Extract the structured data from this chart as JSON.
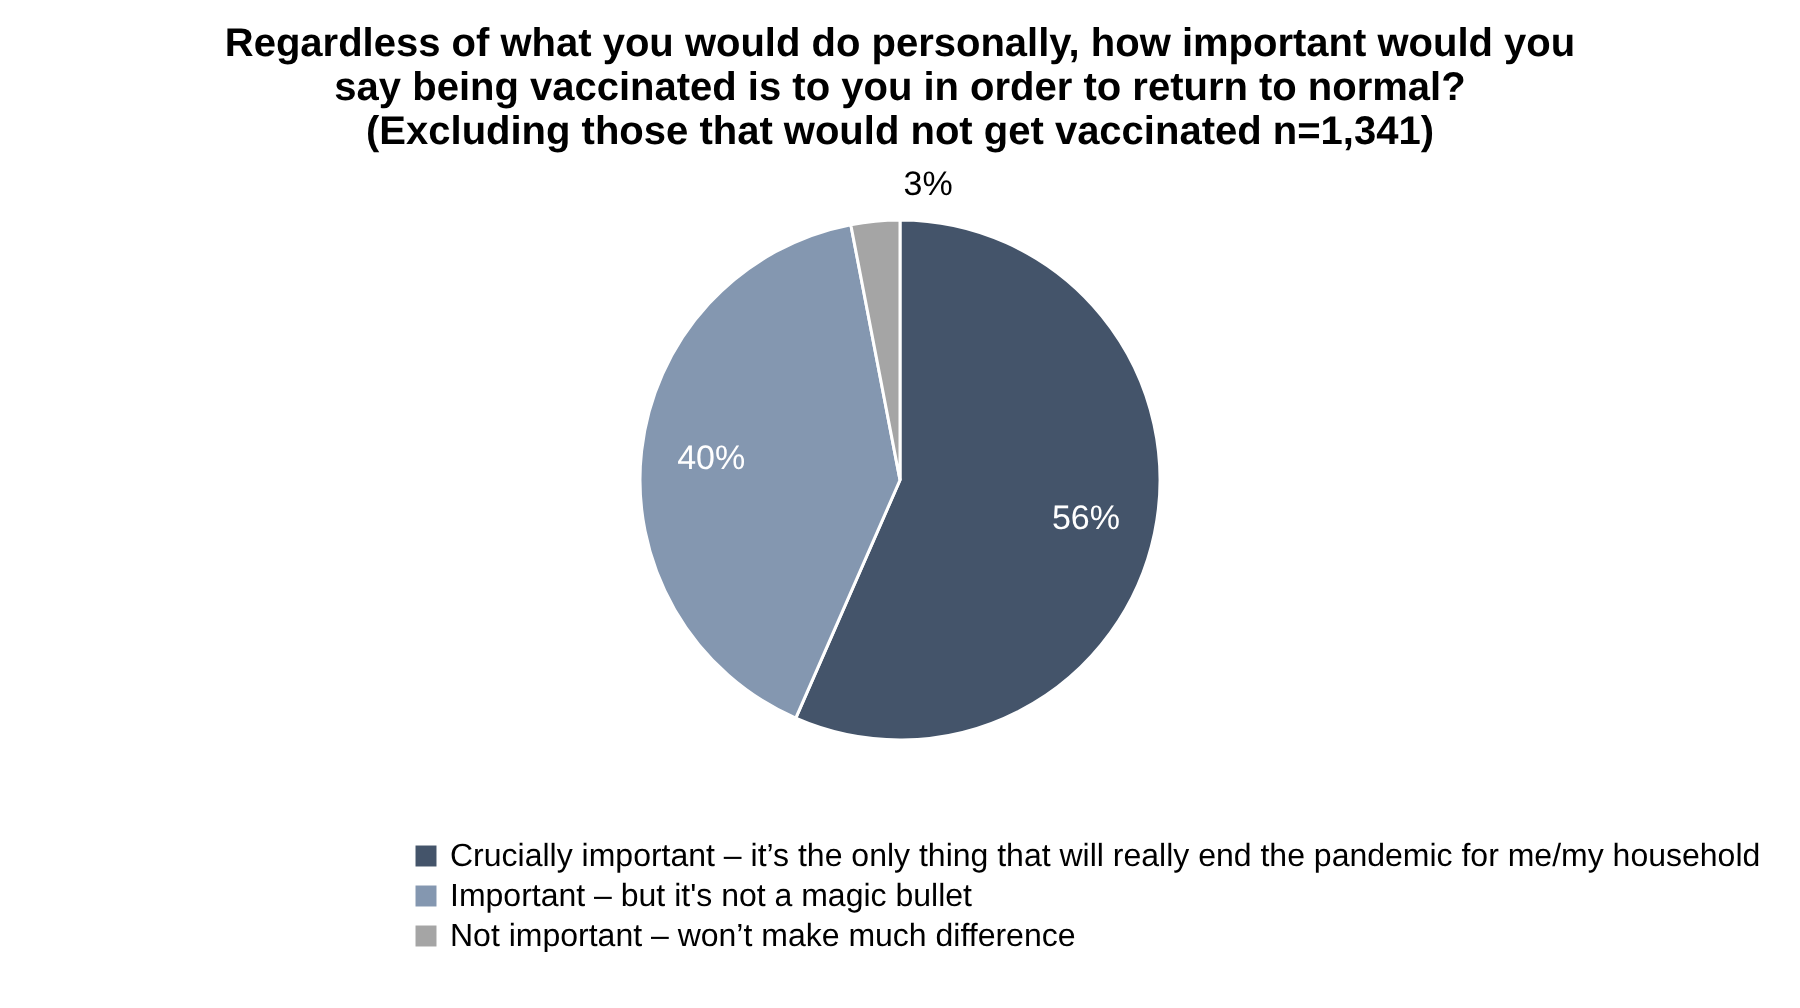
{
  "chart_data": {
    "type": "pie",
    "title": "Regardless of what you would do personally, how important would you\nsay being vaccinated is to you in order to return to normal?\n(Excluding those that would not get vaccinated n=1,341)",
    "categories": [
      "Crucially important – it’s the only thing that will really end the pandemic for me/my household",
      "Important – but it's not a magic bullet",
      "Not important – won’t make much difference"
    ],
    "values": [
      56,
      40,
      3
    ],
    "colors": [
      "#44546a",
      "#8497b0",
      "#a5a5a5"
    ],
    "value_labels": [
      "56%",
      "40%",
      "3%"
    ],
    "legend": "bottom"
  }
}
